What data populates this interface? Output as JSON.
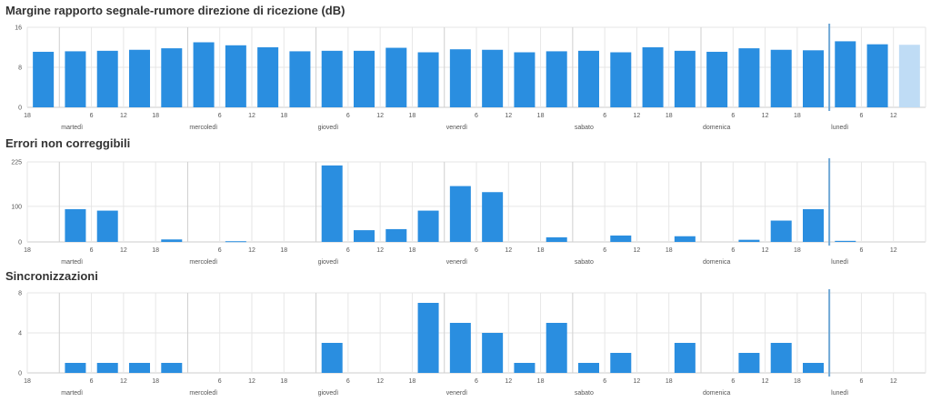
{
  "colors": {
    "bar": "#2a8ee0",
    "bar_partial": "#bfdcf5",
    "grid_minor": "#e6e6e6",
    "grid_day": "#cfcfcf",
    "now_line": "#6fa8d6",
    "axis": "#cccccc"
  },
  "x_axis": {
    "hour_ticks": [
      {
        "x": 18,
        "label": "18"
      },
      {
        "x": 30,
        "label": "6"
      },
      {
        "x": 36,
        "label": "12"
      },
      {
        "x": 42,
        "label": "18"
      },
      {
        "x": 54,
        "label": "6"
      },
      {
        "x": 60,
        "label": "12"
      },
      {
        "x": 66,
        "label": "18"
      },
      {
        "x": 78,
        "label": "6"
      },
      {
        "x": 84,
        "label": "12"
      },
      {
        "x": 90,
        "label": "18"
      },
      {
        "x": 102,
        "label": "6"
      },
      {
        "x": 108,
        "label": "12"
      },
      {
        "x": 114,
        "label": "18"
      },
      {
        "x": 126,
        "label": "6"
      },
      {
        "x": 132,
        "label": "12"
      },
      {
        "x": 138,
        "label": "18"
      },
      {
        "x": 150,
        "label": "6"
      },
      {
        "x": 156,
        "label": "12"
      },
      {
        "x": 162,
        "label": "18"
      },
      {
        "x": 174,
        "label": "6"
      },
      {
        "x": 180,
        "label": "12"
      }
    ],
    "day_ticks": [
      {
        "x": 24,
        "label": "martedì"
      },
      {
        "x": 48,
        "label": "mercoledì"
      },
      {
        "x": 72,
        "label": "giovedì"
      },
      {
        "x": 96,
        "label": "venerdì"
      },
      {
        "x": 120,
        "label": "sabato"
      },
      {
        "x": 144,
        "label": "domenica"
      },
      {
        "x": 168,
        "label": "lunedì"
      }
    ],
    "range": [
      18,
      186
    ],
    "now": 168
  },
  "chart_data": [
    {
      "type": "bar",
      "title": "Margine rapporto segnale-rumore direzione di ricezione (dB)",
      "y_ticks": [
        0,
        8,
        16
      ],
      "ylim": [
        0,
        16
      ],
      "x": [
        21,
        27,
        33,
        39,
        45,
        51,
        57,
        63,
        69,
        75,
        81,
        87,
        93,
        99,
        105,
        111,
        117,
        123,
        129,
        135,
        141,
        147,
        153,
        159,
        165,
        171,
        177,
        183
      ],
      "values": [
        11.1,
        11.2,
        11.3,
        11.5,
        11.8,
        13.0,
        12.4,
        12.0,
        11.2,
        11.3,
        11.3,
        11.9,
        11.0,
        11.6,
        11.5,
        11.0,
        11.2,
        11.3,
        11.0,
        12.0,
        11.3,
        11.1,
        11.8,
        11.5,
        11.4,
        13.2,
        12.6,
        12.5
      ],
      "partial_last": true
    },
    {
      "type": "bar",
      "title": "Errori non correggibili",
      "y_ticks": [
        0,
        100,
        225
      ],
      "ylim": [
        0,
        225
      ],
      "x": [
        21,
        27,
        33,
        39,
        45,
        51,
        57,
        63,
        69,
        75,
        81,
        87,
        93,
        99,
        105,
        111,
        117,
        123,
        129,
        135,
        141,
        147,
        153,
        159,
        165,
        171,
        177,
        183
      ],
      "values": [
        0,
        92,
        88,
        0,
        7,
        0,
        2,
        0,
        0,
        215,
        33,
        36,
        88,
        157,
        140,
        0,
        13,
        0,
        18,
        0,
        16,
        0,
        6,
        60,
        92,
        3,
        0,
        0
      ],
      "partial_last": false
    },
    {
      "type": "bar",
      "title": "Sincronizzazioni",
      "y_ticks": [
        0,
        4,
        8
      ],
      "ylim": [
        0,
        8
      ],
      "x": [
        21,
        27,
        33,
        39,
        45,
        51,
        57,
        63,
        69,
        75,
        81,
        87,
        93,
        99,
        105,
        111,
        117,
        123,
        129,
        135,
        141,
        147,
        153,
        159,
        165,
        171,
        177,
        183
      ],
      "values": [
        0,
        1,
        1,
        1,
        1,
        0,
        0,
        0,
        0,
        3,
        0,
        0,
        7,
        5,
        4,
        1,
        5,
        1,
        2,
        0,
        3,
        0,
        2,
        3,
        1,
        0,
        0,
        0
      ],
      "partial_last": false
    }
  ]
}
